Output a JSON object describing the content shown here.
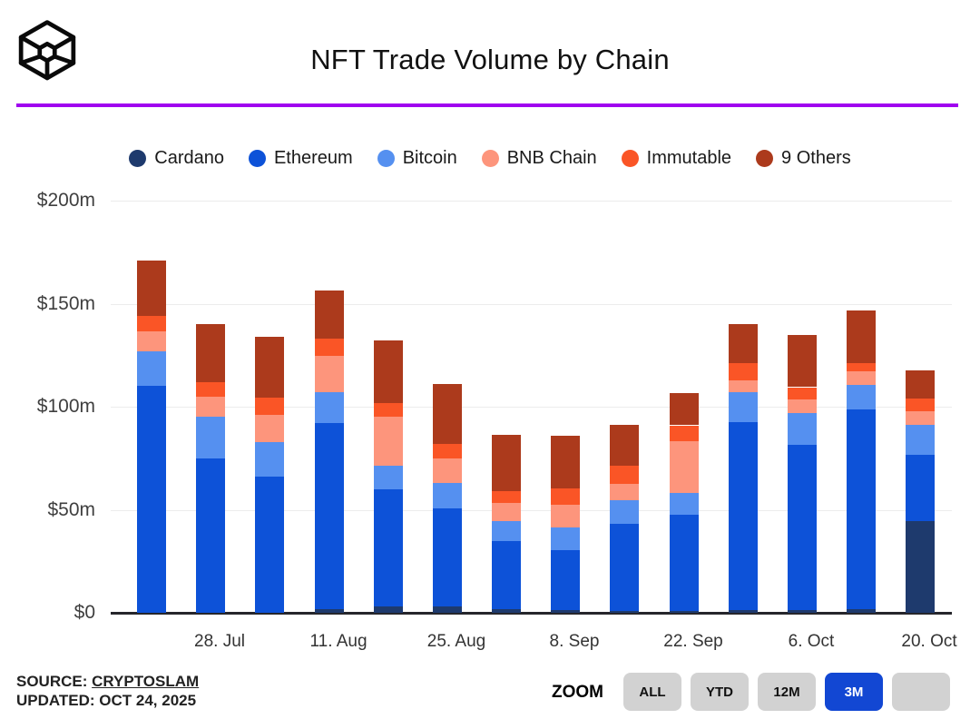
{
  "header": {
    "title": "NFT Trade Volume by Chain",
    "logo_icon": "cube-wireframe-logo",
    "divider_color": "#a001ef"
  },
  "legend": [
    {
      "label": "Cardano",
      "color": "#1e3a6d"
    },
    {
      "label": "Ethereum",
      "color": "#0d52d8"
    },
    {
      "label": "Bitcoin",
      "color": "#5590f0"
    },
    {
      "label": "BNB Chain",
      "color": "#fd957c"
    },
    {
      "label": "Immutable",
      "color": "#fa5526"
    },
    {
      "label": "9 Others",
      "color": "#ac3a1c"
    }
  ],
  "chart_data": {
    "type": "bar",
    "subtype": "stacked-vertical",
    "title": "NFT Trade Volume by Chain",
    "unit": "USD millions",
    "ylim": [
      0,
      200
    ],
    "y_ticks": [
      {
        "value": 0,
        "label": "$0"
      },
      {
        "value": 50,
        "label": "$50m"
      },
      {
        "value": 100,
        "label": "$100m"
      },
      {
        "value": 150,
        "label": "$150m"
      },
      {
        "value": 200,
        "label": "$200m"
      }
    ],
    "grid": "horizontal",
    "legend_position": "top-center",
    "num_bars": 14,
    "x_tick_labels": [
      "28. Jul",
      "11. Aug",
      "25. Aug",
      "8. Sep",
      "22. Sep",
      "6. Oct",
      "20. Oct"
    ],
    "x_tick_bar_indices": [
      1,
      3,
      5,
      7,
      9,
      11,
      13
    ],
    "series": [
      {
        "name": "Cardano",
        "color": "#1e3a6d",
        "values": [
          0,
          0,
          0,
          2,
          3,
          3,
          2,
          1.5,
          1,
          1,
          1.5,
          1.5,
          2,
          44.5
        ]
      },
      {
        "name": "Ethereum",
        "color": "#0d52d8",
        "values": [
          110,
          75,
          66,
          90,
          57,
          47.5,
          33,
          29,
          42,
          46.5,
          91,
          80,
          96.5,
          32
        ]
      },
      {
        "name": "Bitcoin",
        "color": "#5590f0",
        "values": [
          17,
          20,
          17,
          15,
          11.5,
          12.5,
          9.5,
          11,
          11.5,
          10.5,
          14.5,
          15.5,
          12,
          14.5
        ]
      },
      {
        "name": "BNB Chain",
        "color": "#fd957c",
        "values": [
          9.5,
          10,
          13,
          17.5,
          23.5,
          12,
          9,
          11,
          8,
          25.5,
          6,
          6.5,
          6.5,
          7
        ]
      },
      {
        "name": "Immutable",
        "color": "#fa5526",
        "values": [
          7.5,
          7,
          8.5,
          8.5,
          7,
          7,
          5.5,
          8,
          9,
          7.5,
          8,
          6,
          4,
          6
        ]
      },
      {
        "name": "9 Others",
        "color": "#ac3a1c",
        "values": [
          27,
          28,
          29.5,
          23.5,
          30,
          29,
          27.5,
          25.5,
          19.5,
          15.5,
          19,
          25.5,
          25.5,
          13.5
        ]
      }
    ]
  },
  "footer": {
    "source_prefix": "SOURCE: ",
    "source_link": "CRYPTOSLAM",
    "updated": "UPDATED: OCT 24, 2025",
    "zoom_label": "ZOOM",
    "zoom_buttons": [
      {
        "label": "ALL",
        "active": false
      },
      {
        "label": "YTD",
        "active": false
      },
      {
        "label": "12M",
        "active": false
      },
      {
        "label": "3M",
        "active": true
      },
      {
        "label": "",
        "active": false
      }
    ]
  }
}
